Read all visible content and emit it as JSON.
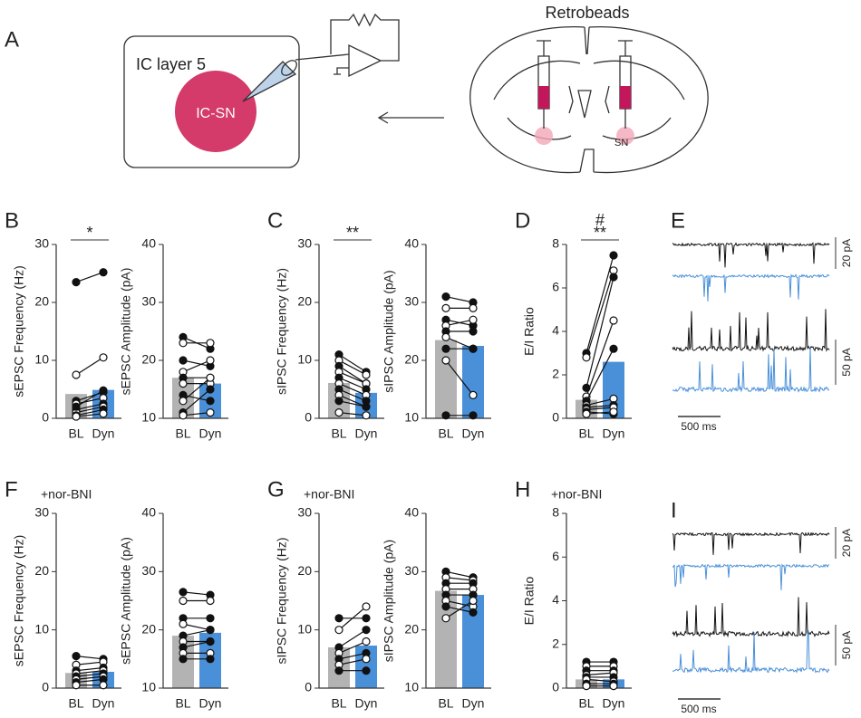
{
  "panel_a": {
    "letter": "A",
    "box_label": "IC layer 5",
    "cell_label": "IC-SN",
    "tracer_label": "Retrobeads",
    "region_label": "SN"
  },
  "chart_data": [
    {
      "type": "bar",
      "panel": "B",
      "ylabel": "sEPSC Frequency (Hz)",
      "categories": [
        "BL",
        "Dyn"
      ],
      "values": [
        4.2,
        4.9
      ],
      "colors": [
        "#b3b3b3",
        "#4a90d9"
      ],
      "ylim": [
        0,
        30
      ],
      "yticks": [
        0,
        10,
        20,
        30
      ],
      "annotations": [
        "*"
      ],
      "pairs": [
        [
          23.5,
          25.2
        ],
        [
          7.5,
          10.5
        ],
        [
          3,
          4.5
        ],
        [
          2.5,
          3.5
        ],
        [
          1.5,
          2.5
        ],
        [
          1,
          2
        ],
        [
          0.5,
          1.5
        ],
        [
          0.3,
          0.8
        ],
        [
          2,
          4.8
        ]
      ]
    },
    {
      "type": "bar",
      "ylabel": "sEPSC Amplitude (pA)",
      "categories": [
        "BL",
        "Dyn"
      ],
      "values": [
        17,
        16
      ],
      "colors": [
        "#b3b3b3",
        "#4a90d9"
      ],
      "ylim": [
        10,
        40
      ],
      "yticks": [
        10,
        20,
        30,
        40
      ],
      "pairs": [
        [
          24,
          22
        ],
        [
          23,
          23
        ],
        [
          20,
          19
        ],
        [
          18,
          20
        ],
        [
          17,
          17
        ],
        [
          16,
          16
        ],
        [
          14,
          13
        ],
        [
          13,
          17
        ],
        [
          11,
          15
        ],
        [
          10.5,
          11
        ]
      ]
    },
    {
      "type": "bar",
      "panel": "C",
      "ylabel": "sIPSC Frequency (Hz)",
      "categories": [
        "BL",
        "Dyn"
      ],
      "values": [
        6.1,
        4.4
      ],
      "colors": [
        "#b3b3b3",
        "#4a90d9"
      ],
      "ylim": [
        0,
        30
      ],
      "yticks": [
        0,
        10,
        20,
        30
      ],
      "annotations": [
        "**"
      ],
      "pairs": [
        [
          11,
          8
        ],
        [
          10,
          7.5
        ],
        [
          9,
          6
        ],
        [
          8,
          6
        ],
        [
          7,
          5
        ],
        [
          6,
          4
        ],
        [
          5,
          3
        ],
        [
          4,
          2
        ],
        [
          3,
          2
        ],
        [
          1,
          0.5
        ]
      ]
    },
    {
      "type": "bar",
      "ylabel": "sIPSC Amplitude (pA)",
      "categories": [
        "BL",
        "Dyn"
      ],
      "values": [
        23.5,
        22.5
      ],
      "colors": [
        "#b3b3b3",
        "#4a90d9"
      ],
      "ylim": [
        10,
        40
      ],
      "yticks": [
        10,
        20,
        30,
        40
      ],
      "pairs": [
        [
          31,
          30
        ],
        [
          29,
          29
        ],
        [
          27,
          26
        ],
        [
          26,
          27
        ],
        [
          25,
          25
        ],
        [
          24,
          22
        ],
        [
          22,
          22
        ],
        [
          20,
          14
        ],
        [
          10.5,
          10.5
        ]
      ]
    },
    {
      "type": "bar",
      "panel": "D",
      "ylabel": "E/I Ratio",
      "categories": [
        "BL",
        "Dyn"
      ],
      "values": [
        0.85,
        2.6
      ],
      "colors": [
        "#b3b3b3",
        "#4a90d9"
      ],
      "ylim": [
        0,
        8
      ],
      "yticks": [
        0,
        2,
        4,
        6,
        8
      ],
      "annotations": [
        "**",
        "#"
      ],
      "pairs": [
        [
          3,
          7.5
        ],
        [
          2.8,
          6.8
        ],
        [
          1.4,
          6.5
        ],
        [
          1,
          4.5
        ],
        [
          0.8,
          3.2
        ],
        [
          0.6,
          0.9
        ],
        [
          0.5,
          0.6
        ],
        [
          0.4,
          0.5
        ],
        [
          0.3,
          0.2
        ],
        [
          0.2,
          0.3
        ]
      ]
    },
    {
      "type": "bar",
      "panel": "F",
      "note": "+nor-BNI",
      "ylabel": "sEPSC Frequency (Hz)",
      "categories": [
        "BL",
        "Dyn"
      ],
      "values": [
        2.6,
        2.8
      ],
      "colors": [
        "#b3b3b3",
        "#4a90d9"
      ],
      "ylim": [
        0,
        30
      ],
      "yticks": [
        0,
        10,
        20,
        30
      ],
      "pairs": [
        [
          5.5,
          5
        ],
        [
          4,
          4.5
        ],
        [
          3,
          3.5
        ],
        [
          2.5,
          3
        ],
        [
          2,
          2.5
        ],
        [
          1.5,
          2
        ],
        [
          1,
          1.5
        ],
        [
          0.5,
          0.5
        ]
      ]
    },
    {
      "type": "bar",
      "ylabel": "sEPSC Amplitude (pA)",
      "categories": [
        "BL",
        "Dyn"
      ],
      "values": [
        19,
        19.5
      ],
      "colors": [
        "#b3b3b3",
        "#4a90d9"
      ],
      "ylim": [
        10,
        40
      ],
      "yticks": [
        10,
        20,
        30,
        40
      ],
      "pairs": [
        [
          26.5,
          26
        ],
        [
          25,
          25
        ],
        [
          22,
          22
        ],
        [
          21,
          20
        ],
        [
          19,
          20
        ],
        [
          18,
          18
        ],
        [
          17,
          18
        ],
        [
          16,
          16
        ],
        [
          15,
          15
        ]
      ]
    },
    {
      "type": "bar",
      "panel": "G",
      "note": "+nor-BNI",
      "ylabel": "sIPSC Frequency (Hz)",
      "categories": [
        "BL",
        "Dyn"
      ],
      "values": [
        7,
        7.3
      ],
      "colors": [
        "#b3b3b3",
        "#4a90d9"
      ],
      "ylim": [
        0,
        30
      ],
      "yticks": [
        0,
        10,
        20,
        30
      ],
      "pairs": [
        [
          12,
          12
        ],
        [
          10,
          14
        ],
        [
          7,
          10
        ],
        [
          6,
          8
        ],
        [
          5,
          6
        ],
        [
          4,
          5
        ],
        [
          3,
          3
        ]
      ]
    },
    {
      "type": "bar",
      "ylabel": "sIPSC Amplitude (pA)",
      "categories": [
        "BL",
        "Dyn"
      ],
      "values": [
        26.7,
        26
      ],
      "colors": [
        "#b3b3b3",
        "#4a90d9"
      ],
      "ylim": [
        10,
        40
      ],
      "yticks": [
        10,
        20,
        30,
        40
      ],
      "pairs": [
        [
          30,
          29
        ],
        [
          29,
          28.5
        ],
        [
          28,
          28
        ],
        [
          27,
          27
        ],
        [
          26,
          26
        ],
        [
          25,
          24
        ],
        [
          24,
          23
        ],
        [
          22,
          25
        ]
      ]
    },
    {
      "type": "bar",
      "panel": "H",
      "note": "+nor-BNI",
      "ylabel": "E/I Ratio",
      "categories": [
        "BL",
        "Dyn"
      ],
      "values": [
        0.4,
        0.4
      ],
      "colors": [
        "#b3b3b3",
        "#4a90d9"
      ],
      "ylim": [
        0,
        8
      ],
      "yticks": [
        0,
        2,
        4,
        6,
        8
      ],
      "pairs": [
        [
          1.2,
          1.2
        ],
        [
          1,
          1
        ],
        [
          0.8,
          0.8
        ],
        [
          0.6,
          0.7
        ],
        [
          0.5,
          0.5
        ],
        [
          0.4,
          0.3
        ],
        [
          0.2,
          0.2
        ],
        [
          0.1,
          0.1
        ]
      ]
    }
  ],
  "traces": [
    {
      "letter": "E",
      "scale_labels": [
        "20 pA",
        "50 pA"
      ],
      "time_label": "500 ms"
    },
    {
      "letter": "I",
      "scale_labels": [
        "20 pA",
        "50 pA"
      ],
      "time_label": "500 ms"
    }
  ]
}
